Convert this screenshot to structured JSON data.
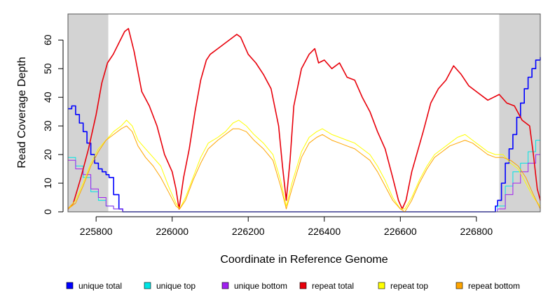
{
  "chart_data": {
    "type": "line",
    "title": "",
    "xlabel": "Coordinate in Reference Genome",
    "ylabel": "Read Coverage Depth",
    "xlim": [
      225726,
      226968
    ],
    "ylim": [
      0,
      70
    ],
    "x_ticks": [
      {
        "value": 225800,
        "label": "225800"
      },
      {
        "value": 226000,
        "label": "226000"
      },
      {
        "value": 226200,
        "label": "226200"
      },
      {
        "value": 226400,
        "label": "226400"
      },
      {
        "value": 226600,
        "label": "226600"
      },
      {
        "value": 226800,
        "label": "226800"
      }
    ],
    "y_ticks": [
      {
        "value": 0,
        "label": "0"
      },
      {
        "value": 10,
        "label": "10"
      },
      {
        "value": 20,
        "label": "20"
      },
      {
        "value": 30,
        "label": "30"
      },
      {
        "value": 40,
        "label": "40"
      },
      {
        "value": 50,
        "label": "50"
      },
      {
        "value": 60,
        "label": "60"
      }
    ],
    "shaded_regions": [
      {
        "x0": 225726,
        "x1": 225832,
        "color": "#d3d3d3"
      },
      {
        "x0": 226860,
        "x1": 226968,
        "color": "#d3d3d3"
      }
    ],
    "series": [
      {
        "name": "unique total",
        "color": "#0000ff",
        "step": true,
        "x": [
          225726,
          225736,
          225746,
          225756,
          225766,
          225776,
          225786,
          225796,
          225806,
          225816,
          225826,
          225834,
          225846,
          225860,
          225870,
          225880,
          225890,
          225900,
          226000,
          226200,
          226400,
          226600,
          226700,
          226800,
          226840,
          226850,
          226856,
          226866,
          226876,
          226886,
          226896,
          226906,
          226916,
          226926,
          226936,
          226946,
          226956,
          226968
        ],
        "y": [
          36,
          37,
          34,
          31,
          28,
          24,
          20,
          17,
          15,
          14,
          13,
          12,
          6,
          1,
          0,
          0,
          0,
          0,
          0,
          0,
          0,
          0,
          0,
          0,
          0,
          2,
          4,
          10,
          17,
          22,
          27,
          33,
          38,
          43,
          47,
          50,
          53,
          54
        ]
      },
      {
        "name": "unique top",
        "color": "#00e5e5",
        "step": true,
        "x": [
          225726,
          225746,
          225766,
          225786,
          225806,
          225826,
          225846,
          225870,
          226000,
          226400,
          226800,
          226856,
          226876,
          226896,
          226916,
          226936,
          226956,
          226968
        ],
        "y": [
          19,
          16,
          12,
          7,
          4,
          2,
          1,
          0,
          0,
          0,
          0,
          2,
          9,
          14,
          17,
          21,
          25,
          29
        ]
      },
      {
        "name": "unique bottom",
        "color": "#a020f0",
        "step": true,
        "x": [
          225726,
          225746,
          225766,
          225786,
          225806,
          225826,
          225846,
          225870,
          226000,
          226400,
          226800,
          226856,
          226876,
          226896,
          226916,
          226936,
          226956,
          226968
        ],
        "y": [
          18,
          15,
          13,
          8,
          5,
          2,
          1,
          0,
          0,
          0,
          0,
          1,
          6,
          10,
          14,
          17,
          20,
          25
        ]
      },
      {
        "name": "repeat total",
        "color": "#e8000b",
        "step": false,
        "x": [
          225726,
          225740,
          225760,
          225780,
          225800,
          225815,
          225830,
          225845,
          225860,
          225875,
          225885,
          225900,
          225920,
          225940,
          225960,
          225980,
          226000,
          226010,
          226018,
          226030,
          226045,
          226060,
          226075,
          226090,
          226100,
          226120,
          226140,
          226160,
          226170,
          226180,
          226200,
          226220,
          226240,
          226260,
          226280,
          226290,
          226300,
          226310,
          226320,
          226340,
          226360,
          226375,
          226385,
          226400,
          226420,
          226440,
          226460,
          226480,
          226500,
          226520,
          226540,
          226560,
          226580,
          226595,
          226605,
          226615,
          226630,
          226660,
          226680,
          226700,
          226720,
          226740,
          226760,
          226780,
          226800,
          226830,
          226860,
          226880,
          226900,
          226920,
          226940,
          226950,
          226960,
          226968
        ],
        "y": [
          1,
          3,
          12,
          22,
          34,
          45,
          52,
          55,
          59,
          63,
          64,
          56,
          42,
          37,
          30,
          20,
          14,
          8,
          1,
          12,
          22,
          35,
          46,
          53,
          55,
          57,
          59,
          61,
          62,
          61,
          55,
          52,
          48,
          43,
          30,
          16,
          4,
          18,
          37,
          50,
          55,
          57,
          52,
          53,
          50,
          52,
          47,
          46,
          40,
          35,
          28,
          22,
          12,
          4,
          1,
          4,
          14,
          28,
          38,
          43,
          46,
          51,
          48,
          44,
          42,
          39,
          41,
          38,
          37,
          32,
          30,
          20,
          8,
          4
        ]
      },
      {
        "name": "repeat top",
        "color": "#ffff00",
        "step": false,
        "x": [
          225726,
          225746,
          225766,
          225786,
          225806,
          225826,
          225846,
          225866,
          225880,
          225895,
          225910,
          225930,
          225950,
          225970,
          225990,
          226010,
          226020,
          226035,
          226055,
          226075,
          226095,
          226120,
          226140,
          226160,
          226175,
          226195,
          226215,
          226240,
          226265,
          226285,
          226300,
          226315,
          226340,
          226360,
          226380,
          226395,
          226420,
          226440,
          226460,
          226480,
          226500,
          226520,
          226540,
          226560,
          226580,
          226600,
          226612,
          226630,
          226650,
          226670,
          226690,
          226710,
          226730,
          226750,
          226770,
          226790,
          226810,
          226830,
          226850,
          226870,
          226890,
          226910,
          226930,
          226950,
          226968
        ],
        "y": [
          1,
          4,
          10,
          17,
          22,
          25,
          28,
          30,
          32,
          30,
          25,
          22,
          19,
          16,
          9,
          3,
          1,
          5,
          12,
          19,
          24,
          26,
          28,
          31,
          32,
          30,
          27,
          24,
          20,
          11,
          2,
          10,
          21,
          26,
          28,
          29,
          27,
          26,
          25,
          24,
          22,
          20,
          16,
          11,
          5,
          1,
          1,
          5,
          11,
          16,
          20,
          22,
          24,
          26,
          27,
          25,
          23,
          21,
          20,
          20,
          17,
          15,
          10,
          5,
          2
        ]
      },
      {
        "name": "repeat bottom",
        "color": "#ffa500",
        "step": false,
        "x": [
          225726,
          225746,
          225766,
          225786,
          225806,
          225826,
          225846,
          225866,
          225880,
          225895,
          225910,
          225930,
          225950,
          225970,
          225990,
          226010,
          226020,
          226035,
          226055,
          226075,
          226095,
          226120,
          226140,
          226160,
          226175,
          226195,
          226215,
          226240,
          226265,
          226285,
          226300,
          226315,
          226340,
          226360,
          226380,
          226395,
          226420,
          226440,
          226460,
          226480,
          226500,
          226520,
          226540,
          226560,
          226580,
          226600,
          226612,
          226630,
          226650,
          226670,
          226690,
          226710,
          226730,
          226750,
          226770,
          226790,
          226810,
          226830,
          226850,
          226870,
          226890,
          226910,
          226930,
          226950,
          226968
        ],
        "y": [
          1,
          3,
          9,
          16,
          21,
          25,
          27,
          29,
          30,
          28,
          23,
          19,
          16,
          12,
          7,
          2,
          1,
          4,
          11,
          17,
          22,
          25,
          27,
          29,
          29,
          28,
          25,
          22,
          18,
          9,
          1,
          8,
          19,
          24,
          26,
          27,
          25,
          24,
          23,
          22,
          20,
          18,
          14,
          9,
          4,
          1,
          0,
          4,
          10,
          15,
          19,
          21,
          23,
          24,
          25,
          24,
          22,
          20,
          19,
          19,
          18,
          16,
          12,
          6,
          1
        ]
      }
    ]
  },
  "legend": [
    {
      "label": "unique total",
      "color": "#0000ff"
    },
    {
      "label": "unique top",
      "color": "#00e5e5"
    },
    {
      "label": "unique bottom",
      "color": "#a020f0"
    },
    {
      "label": "repeat total",
      "color": "#e8000b"
    },
    {
      "label": "repeat top",
      "color": "#ffff00"
    },
    {
      "label": "repeat bottom",
      "color": "#ffa500"
    }
  ]
}
